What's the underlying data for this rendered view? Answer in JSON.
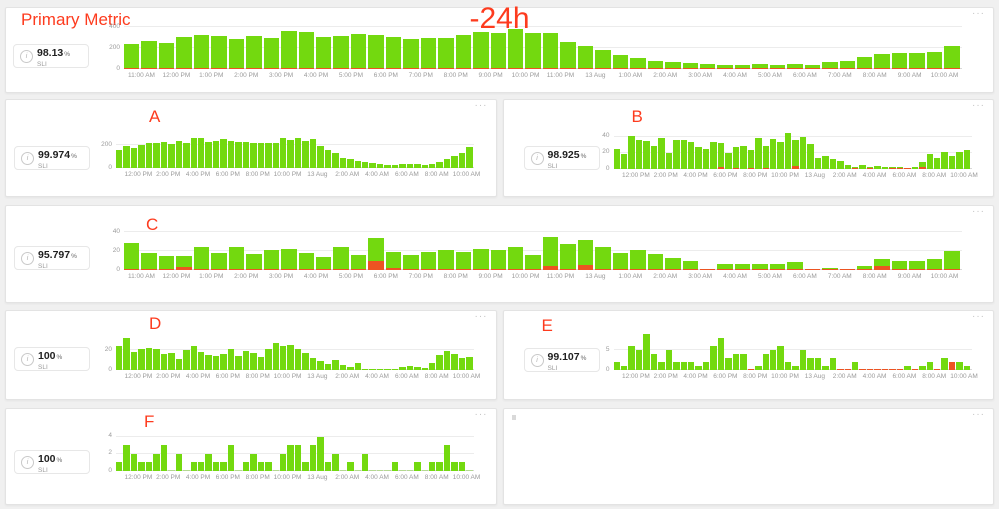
{
  "time_range_label": "-24h",
  "icons": {
    "menu_icon": "···",
    "info_icon_char": "i"
  },
  "colors": {
    "bar_green": "#73d90f",
    "bar_red": "#ed5322",
    "title_red": "#fd3b1e",
    "axis_text": "#9b9b9b",
    "page_bg": "#f0f0f0",
    "panel_bg": "#ffffff"
  },
  "panels": {
    "primary": {
      "title": "Primary Metric",
      "sli_value": "98.13",
      "sli_unit": "%",
      "sli_label": "SLI"
    },
    "A": {
      "title": "A",
      "sli_value": "99.974",
      "sli_unit": "%",
      "sli_label": "SLI"
    },
    "B": {
      "title": "B",
      "sli_value": "98.925",
      "sli_unit": "%",
      "sli_label": "SLI"
    },
    "C": {
      "title": "C",
      "sli_value": "95.797",
      "sli_unit": "%",
      "sli_label": "SLI"
    },
    "D": {
      "title": "D",
      "sli_value": "100",
      "sli_unit": "%",
      "sli_label": "SLI"
    },
    "E": {
      "title": "E",
      "sli_value": "99.107",
      "sli_unit": "%",
      "sli_label": "SLI"
    },
    "F": {
      "title": "F",
      "sli_value": "100",
      "sli_unit": "%",
      "sli_label": "SLI"
    },
    "empty": {
      "title": ""
    }
  },
  "chart_data": {
    "primary": {
      "type": "bar",
      "title": "Primary Metric",
      "span": "full",
      "ylim": [
        0,
        420
      ],
      "yticks": [
        0,
        200,
        400
      ],
      "x_labels": [
        "11:00 AM",
        "12:00 PM",
        "1:00 PM",
        "2:00 PM",
        "3:00 PM",
        "4:00 PM",
        "5:00 PM",
        "6:00 PM",
        "7:00 PM",
        "8:00 PM",
        "9:00 PM",
        "10:00 PM",
        "11:00 PM",
        "13 Aug",
        "1:00 AM",
        "2:00 AM",
        "3:00 AM",
        "4:00 AM",
        "5:00 AM",
        "6:00 AM",
        "7:00 AM",
        "8:00 AM",
        "9:00 AM",
        "10:00 AM"
      ],
      "values": [
        236,
        270,
        250,
        305,
        322,
        312,
        288,
        315,
        298,
        360,
        352,
        306,
        318,
        336,
        326,
        306,
        288,
        296,
        300,
        325,
        358,
        344,
        378,
        346,
        344,
        262,
        218,
        180,
        134,
        102,
        80,
        64,
        55,
        45,
        40,
        40,
        44,
        38,
        44,
        40,
        64,
        80,
        114,
        140,
        152,
        150,
        164,
        222
      ],
      "red": [
        4,
        3,
        3,
        10,
        3,
        3,
        6,
        3,
        3,
        4,
        3,
        3,
        3,
        3,
        12,
        3,
        3,
        3,
        4,
        3,
        3,
        4,
        3,
        4,
        3,
        3,
        3,
        2,
        2,
        2,
        1,
        1,
        1,
        1,
        1,
        1,
        1,
        1,
        1,
        1,
        6,
        2,
        2,
        2,
        3,
        2,
        2,
        3
      ]
    },
    "A": {
      "type": "bar",
      "title": "A",
      "span": "half",
      "ylim": [
        0,
        280
      ],
      "yticks": [
        0,
        200
      ],
      "x_labels": [
        "12:00 PM",
        "2:00 PM",
        "4:00 PM",
        "6:00 PM",
        "8:00 PM",
        "10:00 PM",
        "13 Aug",
        "2:00 AM",
        "4:00 AM",
        "6:00 AM",
        "8:00 AM",
        "10:00 AM"
      ],
      "values": [
        154,
        194,
        175,
        200,
        215,
        222,
        231,
        209,
        240,
        222,
        262,
        262,
        231,
        234,
        252,
        240,
        225,
        231,
        215,
        222,
        222,
        215,
        262,
        246,
        262,
        240,
        255,
        191,
        160,
        132,
        92,
        77,
        62,
        52,
        46,
        37,
        25,
        25,
        31,
        34,
        31,
        25,
        31,
        55,
        77,
        105,
        135,
        180
      ]
    },
    "B": {
      "type": "bar",
      "title": "B",
      "span": "half",
      "ylim": [
        0,
        47
      ],
      "yticks": [
        0,
        20,
        40
      ],
      "x_labels": [
        "12:00 PM",
        "2:00 PM",
        "4:00 PM",
        "6:00 PM",
        "8:00 PM",
        "10:00 PM",
        "13 Aug",
        "2:00 AM",
        "4:00 AM",
        "6:00 AM",
        "8:00 AM",
        "10:00 AM"
      ],
      "values": [
        25,
        19,
        41,
        36,
        35,
        29,
        38,
        20,
        36,
        36,
        34,
        27,
        25,
        33,
        32,
        20,
        27,
        28,
        24,
        38,
        28,
        37,
        34,
        45,
        36,
        39,
        31,
        14,
        16,
        13,
        10,
        5,
        2,
        5,
        2,
        4,
        3,
        3,
        2,
        1,
        3,
        9,
        19,
        14,
        21,
        16,
        21,
        23
      ],
      "red": [
        0,
        0,
        0,
        0,
        0,
        0,
        0,
        0,
        0,
        0,
        0,
        0,
        0,
        0,
        2,
        0,
        1.5,
        0,
        1,
        0,
        1,
        0,
        0,
        0,
        3.5,
        0,
        0,
        0,
        0,
        0,
        0,
        0,
        0.5,
        0,
        0.5,
        0,
        0,
        0.5,
        0.5,
        0.5,
        0,
        2,
        0,
        0,
        0,
        0,
        0,
        0
      ]
    },
    "C": {
      "type": "bar",
      "title": "C",
      "span": "full",
      "ylim": [
        0,
        38
      ],
      "yticks": [
        0,
        20,
        40
      ],
      "x_labels": [
        "11:00 AM",
        "12:00 PM",
        "1:00 PM",
        "2:00 PM",
        "3:00 PM",
        "4:00 PM",
        "5:00 PM",
        "6:00 PM",
        "7:00 PM",
        "8:00 PM",
        "9:00 PM",
        "10:00 PM",
        "11:00 PM",
        "13 Aug",
        "1:00 AM",
        "2:00 AM",
        "3:00 AM",
        "4:00 AM",
        "5:00 AM",
        "6:00 AM",
        "7:00 AM",
        "8:00 AM",
        "9:00 AM",
        "10:00 AM"
      ],
      "values": [
        28,
        18,
        15,
        15,
        24,
        18,
        24,
        17,
        21,
        22,
        18,
        14,
        24,
        16,
        34,
        19,
        16,
        19,
        21,
        19,
        22,
        21,
        24,
        16,
        35,
        27,
        32,
        24,
        18,
        21,
        17,
        13,
        10,
        1,
        6,
        6,
        6,
        6,
        8,
        1,
        2,
        1,
        4,
        12,
        9,
        10,
        12,
        20
      ],
      "red": [
        1,
        1,
        1,
        3,
        1,
        1,
        1,
        1,
        1,
        1,
        1,
        1,
        1,
        1,
        9,
        2,
        1,
        1,
        1,
        1,
        1,
        1,
        1,
        1,
        4,
        1,
        5,
        1,
        1,
        1,
        1,
        1,
        0.5,
        0.5,
        0.5,
        0.5,
        0.5,
        0.5,
        0.5,
        0.5,
        0.5,
        0.5,
        0.5,
        4,
        1,
        1,
        1,
        1
      ]
    },
    "D": {
      "type": "bar",
      "title": "D",
      "span": "half",
      "ylim": [
        0,
        34
      ],
      "yticks": [
        0,
        20
      ],
      "x_labels": [
        "12:00 PM",
        "2:00 PM",
        "4:00 PM",
        "6:00 PM",
        "8:00 PM",
        "10:00 PM",
        "13 Aug",
        "2:00 AM",
        "4:00 AM",
        "6:00 AM",
        "8:00 AM",
        "10:00 AM"
      ],
      "values": [
        24,
        32,
        18,
        21,
        22,
        21,
        16,
        17,
        11,
        20,
        24,
        18,
        15,
        14,
        16,
        21,
        14,
        19,
        17,
        13,
        21,
        27,
        24,
        25,
        21,
        17,
        12,
        9,
        6,
        10,
        5,
        3,
        7,
        1,
        0.5,
        1,
        0.5,
        0.5,
        3,
        4,
        3,
        2,
        7,
        15,
        19,
        16,
        12,
        13
      ]
    },
    "E": {
      "type": "bar",
      "title": "E",
      "span": "half",
      "ylim": [
        0,
        9.5
      ],
      "yticks": [
        0,
        5
      ],
      "x_labels": [
        "12:00 PM",
        "2:00 PM",
        "4:00 PM",
        "6:00 PM",
        "8:00 PM",
        "10:00 PM",
        "13 Aug",
        "2:00 AM",
        "4:00 AM",
        "6:00 AM",
        "8:00 AM",
        "10:00 AM"
      ],
      "values": [
        2,
        1,
        6,
        5,
        9,
        4,
        2,
        5,
        2,
        2,
        2,
        1,
        2,
        6,
        8,
        3,
        4,
        4,
        0,
        1,
        4,
        5,
        6,
        2,
        1,
        5,
        3,
        3,
        1,
        3,
        0,
        0,
        2,
        0,
        0,
        0,
        0,
        0,
        0,
        1,
        0,
        1,
        2,
        0,
        3,
        2,
        2,
        1
      ],
      "red": [
        0,
        0,
        0,
        0,
        0,
        0,
        0,
        0,
        0,
        0,
        0,
        0,
        0,
        0,
        0,
        0,
        0,
        0,
        0.3,
        0,
        0,
        0,
        0,
        0,
        0,
        0,
        0,
        0,
        0,
        0,
        0.3,
        0.3,
        0,
        0.3,
        0.3,
        0.3,
        0.3,
        0.3,
        0.3,
        0,
        0.3,
        0,
        0,
        0.3,
        0,
        2,
        0,
        0
      ]
    },
    "F": {
      "type": "bar",
      "title": "F",
      "span": "half",
      "ylim": [
        0,
        4.2
      ],
      "yticks": [
        0,
        2,
        4
      ],
      "x_labels": [
        "12:00 PM",
        "2:00 PM",
        "4:00 PM",
        "6:00 PM",
        "8:00 PM",
        "10:00 PM",
        "13 Aug",
        "2:00 AM",
        "4:00 AM",
        "6:00 AM",
        "8:00 AM",
        "10:00 AM"
      ],
      "values": [
        1,
        3,
        2,
        1,
        1,
        2,
        3,
        0,
        2,
        0,
        1,
        1,
        2,
        1,
        1,
        3,
        0,
        1,
        2,
        1,
        1,
        0,
        2,
        3,
        3,
        1,
        3,
        4,
        1,
        2,
        0,
        1,
        0,
        2,
        0,
        0,
        0,
        1,
        0,
        0,
        1,
        0,
        1,
        1,
        3,
        1,
        1,
        0
      ]
    }
  }
}
